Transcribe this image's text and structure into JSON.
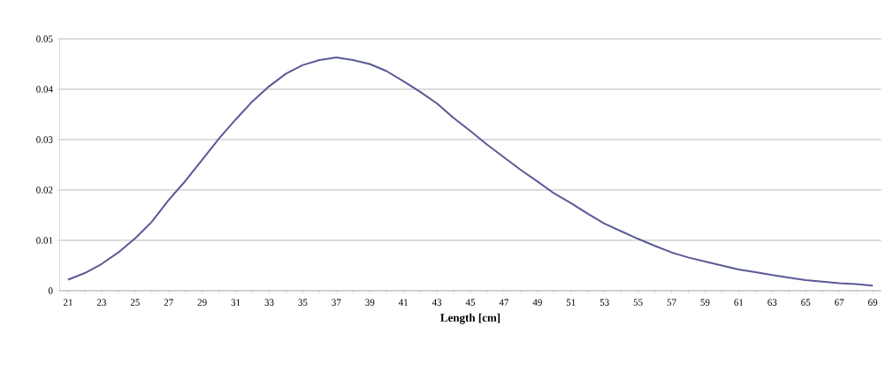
{
  "chart_data": {
    "type": "line",
    "xlabel": "Length [cm]",
    "categories": [
      "21",
      null,
      "23",
      null,
      "25",
      null,
      "27",
      null,
      "29",
      null,
      "31",
      null,
      "33",
      null,
      "35",
      null,
      "37",
      null,
      "39",
      null,
      "41",
      null,
      "43",
      null,
      "45",
      null,
      "47",
      null,
      "49",
      null,
      "51",
      null,
      "53",
      null,
      "55",
      null,
      "57",
      null,
      "59",
      null,
      "61",
      null,
      "63",
      null,
      "65",
      null,
      "67",
      null,
      "69"
    ],
    "series": [
      {
        "color": "#5a5a98",
        "values": [
          0.0022,
          0.0035,
          0.0053,
          0.0076,
          0.0104,
          0.0137,
          0.018,
          0.0218,
          0.026,
          0.0302,
          0.034,
          0.0376,
          0.0406,
          0.0431,
          0.0448,
          0.0458,
          0.0463,
          0.0458,
          0.045,
          0.0436,
          0.0416,
          0.0395,
          0.0372,
          0.0343,
          0.0317,
          0.029,
          0.0265,
          0.024,
          0.0217,
          0.0193,
          0.0174,
          0.0153,
          0.0133,
          0.0118,
          0.0103,
          0.0089,
          0.0076,
          0.0066,
          0.0058,
          0.005,
          0.0042,
          0.0037,
          0.0031,
          0.0026,
          0.0021,
          0.0018,
          0.0015,
          0.0013,
          0.001
        ]
      }
    ],
    "ylim": [
      0,
      0.05
    ],
    "yticks": [
      0,
      0.01,
      0.02,
      0.03,
      0.04,
      0.05
    ],
    "grid": "y",
    "marker": "none",
    "line_style": "solid"
  }
}
